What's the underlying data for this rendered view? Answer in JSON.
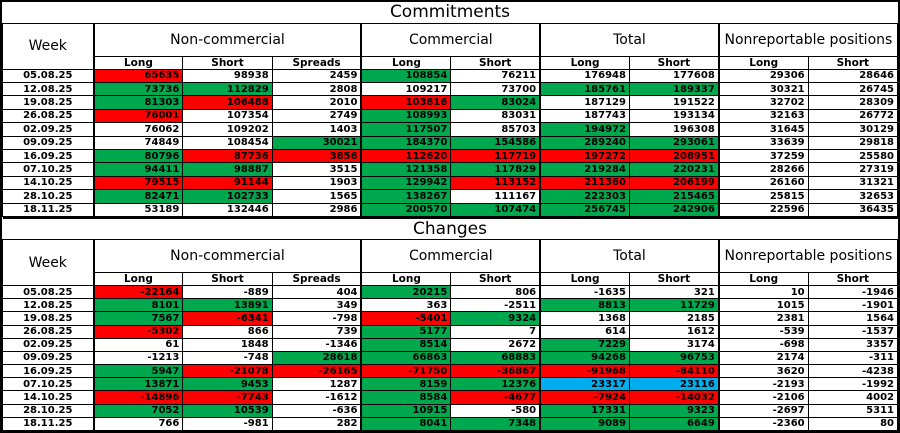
{
  "colors": {
    "green": "#00a84d",
    "red": "#fd0000",
    "blue": "#00aeef",
    "white": "#ffffff",
    "border": "#000000"
  },
  "header": {
    "week": "Week",
    "groups": [
      {
        "label": "Non-commercial",
        "cols": [
          "Long",
          "Short",
          "Spreads"
        ]
      },
      {
        "label": "Commercial",
        "cols": [
          "Long",
          "Short"
        ]
      },
      {
        "label": "Total",
        "cols": [
          "Long",
          "Short"
        ]
      },
      {
        "label": "Nonreportable positions",
        "cols": [
          "Long",
          "Short"
        ]
      }
    ]
  },
  "sections": [
    {
      "title": "Commitments",
      "rows": [
        {
          "week": "05.08.25",
          "cells": [
            [
              "65635",
              "r"
            ],
            [
              "98938",
              "w"
            ],
            [
              "2459",
              "w"
            ],
            [
              "108854",
              "g"
            ],
            [
              "76211",
              "w"
            ],
            [
              "176948",
              "w"
            ],
            [
              "177608",
              "w"
            ],
            [
              "29306",
              "w"
            ],
            [
              "28646",
              "w"
            ]
          ]
        },
        {
          "week": "12.08.25",
          "cells": [
            [
              "73736",
              "g"
            ],
            [
              "112829",
              "g"
            ],
            [
              "2808",
              "w"
            ],
            [
              "109217",
              "w"
            ],
            [
              "73700",
              "w"
            ],
            [
              "185761",
              "g"
            ],
            [
              "189337",
              "g"
            ],
            [
              "30321",
              "w"
            ],
            [
              "26745",
              "w"
            ]
          ]
        },
        {
          "week": "19.08.25",
          "cells": [
            [
              "81303",
              "g"
            ],
            [
              "106488",
              "r"
            ],
            [
              "2010",
              "w"
            ],
            [
              "103816",
              "r"
            ],
            [
              "83024",
              "g"
            ],
            [
              "187129",
              "w"
            ],
            [
              "191522",
              "w"
            ],
            [
              "32702",
              "w"
            ],
            [
              "28309",
              "w"
            ]
          ]
        },
        {
          "week": "26.08.25",
          "cells": [
            [
              "76001",
              "r"
            ],
            [
              "107354",
              "w"
            ],
            [
              "2749",
              "w"
            ],
            [
              "108993",
              "g"
            ],
            [
              "83031",
              "w"
            ],
            [
              "187743",
              "w"
            ],
            [
              "193134",
              "w"
            ],
            [
              "32163",
              "w"
            ],
            [
              "26772",
              "w"
            ]
          ]
        },
        {
          "week": "02.09.25",
          "cells": [
            [
              "76062",
              "w"
            ],
            [
              "109202",
              "w"
            ],
            [
              "1403",
              "w"
            ],
            [
              "117507",
              "g"
            ],
            [
              "85703",
              "w"
            ],
            [
              "194972",
              "g"
            ],
            [
              "196308",
              "w"
            ],
            [
              "31645",
              "w"
            ],
            [
              "30129",
              "w"
            ]
          ]
        },
        {
          "week": "09.09.25",
          "cells": [
            [
              "74849",
              "w"
            ],
            [
              "108454",
              "w"
            ],
            [
              "30021",
              "g"
            ],
            [
              "184370",
              "g"
            ],
            [
              "154586",
              "g"
            ],
            [
              "289240",
              "g"
            ],
            [
              "293061",
              "g"
            ],
            [
              "33639",
              "w"
            ],
            [
              "29818",
              "w"
            ]
          ]
        },
        {
          "week": "16.09.25",
          "cells": [
            [
              "80796",
              "g"
            ],
            [
              "87736",
              "r"
            ],
            [
              "3856",
              "r"
            ],
            [
              "112620",
              "r"
            ],
            [
              "117719",
              "r"
            ],
            [
              "197272",
              "r"
            ],
            [
              "208951",
              "r"
            ],
            [
              "37259",
              "w"
            ],
            [
              "25580",
              "w"
            ]
          ]
        },
        {
          "week": "07.10.25",
          "cells": [
            [
              "94411",
              "g"
            ],
            [
              "98887",
              "g"
            ],
            [
              "3515",
              "w"
            ],
            [
              "121358",
              "g"
            ],
            [
              "117829",
              "g"
            ],
            [
              "219284",
              "g"
            ],
            [
              "220231",
              "g"
            ],
            [
              "28266",
              "w"
            ],
            [
              "27319",
              "w"
            ]
          ]
        },
        {
          "week": "14.10.25",
          "cells": [
            [
              "79515",
              "r"
            ],
            [
              "91144",
              "r"
            ],
            [
              "1903",
              "w"
            ],
            [
              "129942",
              "g"
            ],
            [
              "113152",
              "r"
            ],
            [
              "211360",
              "r"
            ],
            [
              "206199",
              "r"
            ],
            [
              "26160",
              "w"
            ],
            [
              "31321",
              "w"
            ]
          ]
        },
        {
          "week": "28.10.25",
          "cells": [
            [
              "82471",
              "g"
            ],
            [
              "102733",
              "g"
            ],
            [
              "1565",
              "w"
            ],
            [
              "138267",
              "g"
            ],
            [
              "111167",
              "w"
            ],
            [
              "222303",
              "g"
            ],
            [
              "215465",
              "g"
            ],
            [
              "25815",
              "w"
            ],
            [
              "32653",
              "w"
            ]
          ]
        },
        {
          "week": "18.11.25",
          "cells": [
            [
              "53189",
              "w"
            ],
            [
              "132446",
              "w"
            ],
            [
              "2986",
              "w"
            ],
            [
              "200570",
              "g"
            ],
            [
              "107474",
              "g"
            ],
            [
              "256745",
              "g",
              1
            ],
            [
              "242906",
              "g",
              1
            ],
            [
              "22596",
              "w"
            ],
            [
              "36435",
              "w"
            ]
          ]
        }
      ]
    },
    {
      "title": "Changes",
      "rows": [
        {
          "week": "05.08.25",
          "cells": [
            [
              "-22164",
              "r"
            ],
            [
              "-889",
              "w"
            ],
            [
              "404",
              "w"
            ],
            [
              "20215",
              "g"
            ],
            [
              "806",
              "w"
            ],
            [
              "-1635",
              "w"
            ],
            [
              "321",
              "w"
            ],
            [
              "10",
              "w"
            ],
            [
              "-1946",
              "w"
            ]
          ]
        },
        {
          "week": "12.08.25",
          "cells": [
            [
              "8101",
              "g"
            ],
            [
              "13891",
              "g"
            ],
            [
              "349",
              "w"
            ],
            [
              "363",
              "w"
            ],
            [
              "-2511",
              "w"
            ],
            [
              "8813",
              "g"
            ],
            [
              "11729",
              "g"
            ],
            [
              "1015",
              "w"
            ],
            [
              "-1901",
              "w"
            ]
          ]
        },
        {
          "week": "19.08.25",
          "cells": [
            [
              "7567",
              "g"
            ],
            [
              "-6341",
              "r"
            ],
            [
              "-798",
              "w"
            ],
            [
              "-5401",
              "r"
            ],
            [
              "9324",
              "g"
            ],
            [
              "1368",
              "w"
            ],
            [
              "2185",
              "w"
            ],
            [
              "2381",
              "w"
            ],
            [
              "1564",
              "w"
            ]
          ]
        },
        {
          "week": "26.08.25",
          "cells": [
            [
              "-5302",
              "r"
            ],
            [
              "866",
              "w"
            ],
            [
              "739",
              "w"
            ],
            [
              "5177",
              "g"
            ],
            [
              "7",
              "w"
            ],
            [
              "614",
              "w"
            ],
            [
              "1612",
              "w"
            ],
            [
              "-539",
              "w"
            ],
            [
              "-1537",
              "w"
            ]
          ]
        },
        {
          "week": "02.09.25",
          "cells": [
            [
              "61",
              "w"
            ],
            [
              "1848",
              "w"
            ],
            [
              "-1346",
              "w"
            ],
            [
              "8514",
              "g"
            ],
            [
              "2672",
              "w"
            ],
            [
              "7229",
              "g"
            ],
            [
              "3174",
              "w"
            ],
            [
              "-698",
              "w"
            ],
            [
              "3357",
              "w"
            ]
          ]
        },
        {
          "week": "09.09.25",
          "cells": [
            [
              "-1213",
              "w"
            ],
            [
              "-748",
              "w"
            ],
            [
              "28618",
              "g"
            ],
            [
              "66863",
              "g"
            ],
            [
              "68883",
              "g"
            ],
            [
              "94268",
              "g"
            ],
            [
              "96753",
              "g"
            ],
            [
              "2174",
              "w"
            ],
            [
              "-311",
              "w"
            ]
          ]
        },
        {
          "week": "16.09.25",
          "cells": [
            [
              "5947",
              "g"
            ],
            [
              "-21078",
              "r"
            ],
            [
              "-26165",
              "r"
            ],
            [
              "-71750",
              "r"
            ],
            [
              "-36867",
              "r"
            ],
            [
              "-91968",
              "r"
            ],
            [
              "-84110",
              "r"
            ],
            [
              "3620",
              "w"
            ],
            [
              "-4238",
              "w"
            ]
          ]
        },
        {
          "week": "07.10.25",
          "cells": [
            [
              "13871",
              "g"
            ],
            [
              "9453",
              "g"
            ],
            [
              "1287",
              "w"
            ],
            [
              "8159",
              "g"
            ],
            [
              "12376",
              "g"
            ],
            [
              "23317",
              "b"
            ],
            [
              "23116",
              "b"
            ],
            [
              "-2193",
              "w"
            ],
            [
              "-1992",
              "w"
            ]
          ]
        },
        {
          "week": "14.10.25",
          "cells": [
            [
              "-14896",
              "r"
            ],
            [
              "-7743",
              "r"
            ],
            [
              "-1612",
              "w"
            ],
            [
              "8584",
              "g"
            ],
            [
              "-4677",
              "r"
            ],
            [
              "-7924",
              "r"
            ],
            [
              "-14032",
              "r"
            ],
            [
              "-2106",
              "w"
            ],
            [
              "4002",
              "w"
            ]
          ]
        },
        {
          "week": "28.10.25",
          "cells": [
            [
              "7052",
              "g"
            ],
            [
              "10539",
              "g"
            ],
            [
              "-636",
              "w"
            ],
            [
              "10915",
              "g"
            ],
            [
              "-580",
              "w"
            ],
            [
              "17331",
              "g"
            ],
            [
              "9323",
              "g"
            ],
            [
              "-2697",
              "w"
            ],
            [
              "5311",
              "w"
            ]
          ]
        },
        {
          "week": "18.11.25",
          "cells": [
            [
              "766",
              "w"
            ],
            [
              "-981",
              "w"
            ],
            [
              "282",
              "w"
            ],
            [
              "8041",
              "g"
            ],
            [
              "7348",
              "g"
            ],
            [
              "9089",
              "g",
              1
            ],
            [
              "6649",
              "g",
              1
            ],
            [
              "-2360",
              "w"
            ],
            [
              "80",
              "w"
            ]
          ]
        }
      ]
    }
  ]
}
